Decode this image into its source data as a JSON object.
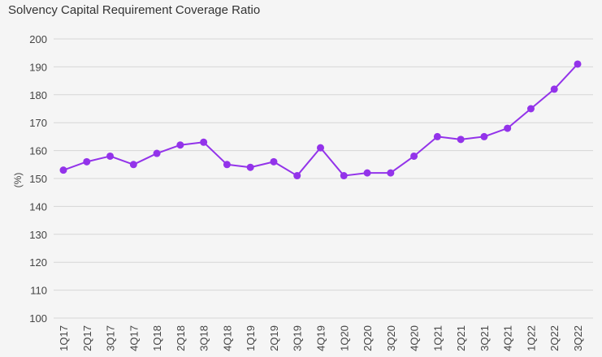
{
  "chart_data": {
    "type": "line",
    "title": "Solvency Capital Requirement Coverage Ratio",
    "ylabel": "(%)",
    "xlabel": "",
    "categories": [
      "1Q17",
      "2Q17",
      "3Q17",
      "4Q17",
      "1Q18",
      "2Q18",
      "3Q18",
      "4Q18",
      "1Q19",
      "2Q19",
      "3Q19",
      "4Q19",
      "1Q20",
      "2Q20",
      "3Q20",
      "4Q20",
      "1Q21",
      "2Q21",
      "3Q21",
      "4Q21",
      "1Q22",
      "2Q22",
      "3Q22"
    ],
    "series": [
      {
        "values": [
          153,
          156,
          158,
          155,
          159,
          162,
          163,
          155,
          154,
          156,
          151,
          161,
          151,
          152,
          152,
          158,
          165,
          164,
          165,
          168,
          175,
          182,
          191
        ]
      }
    ],
    "ylim": [
      100,
      200
    ],
    "yticks": [
      100,
      110,
      120,
      130,
      140,
      150,
      160,
      170,
      180,
      190,
      200
    ],
    "grid": true,
    "colors": {
      "line": "#9333ea",
      "marker": "#9333ea"
    }
  }
}
